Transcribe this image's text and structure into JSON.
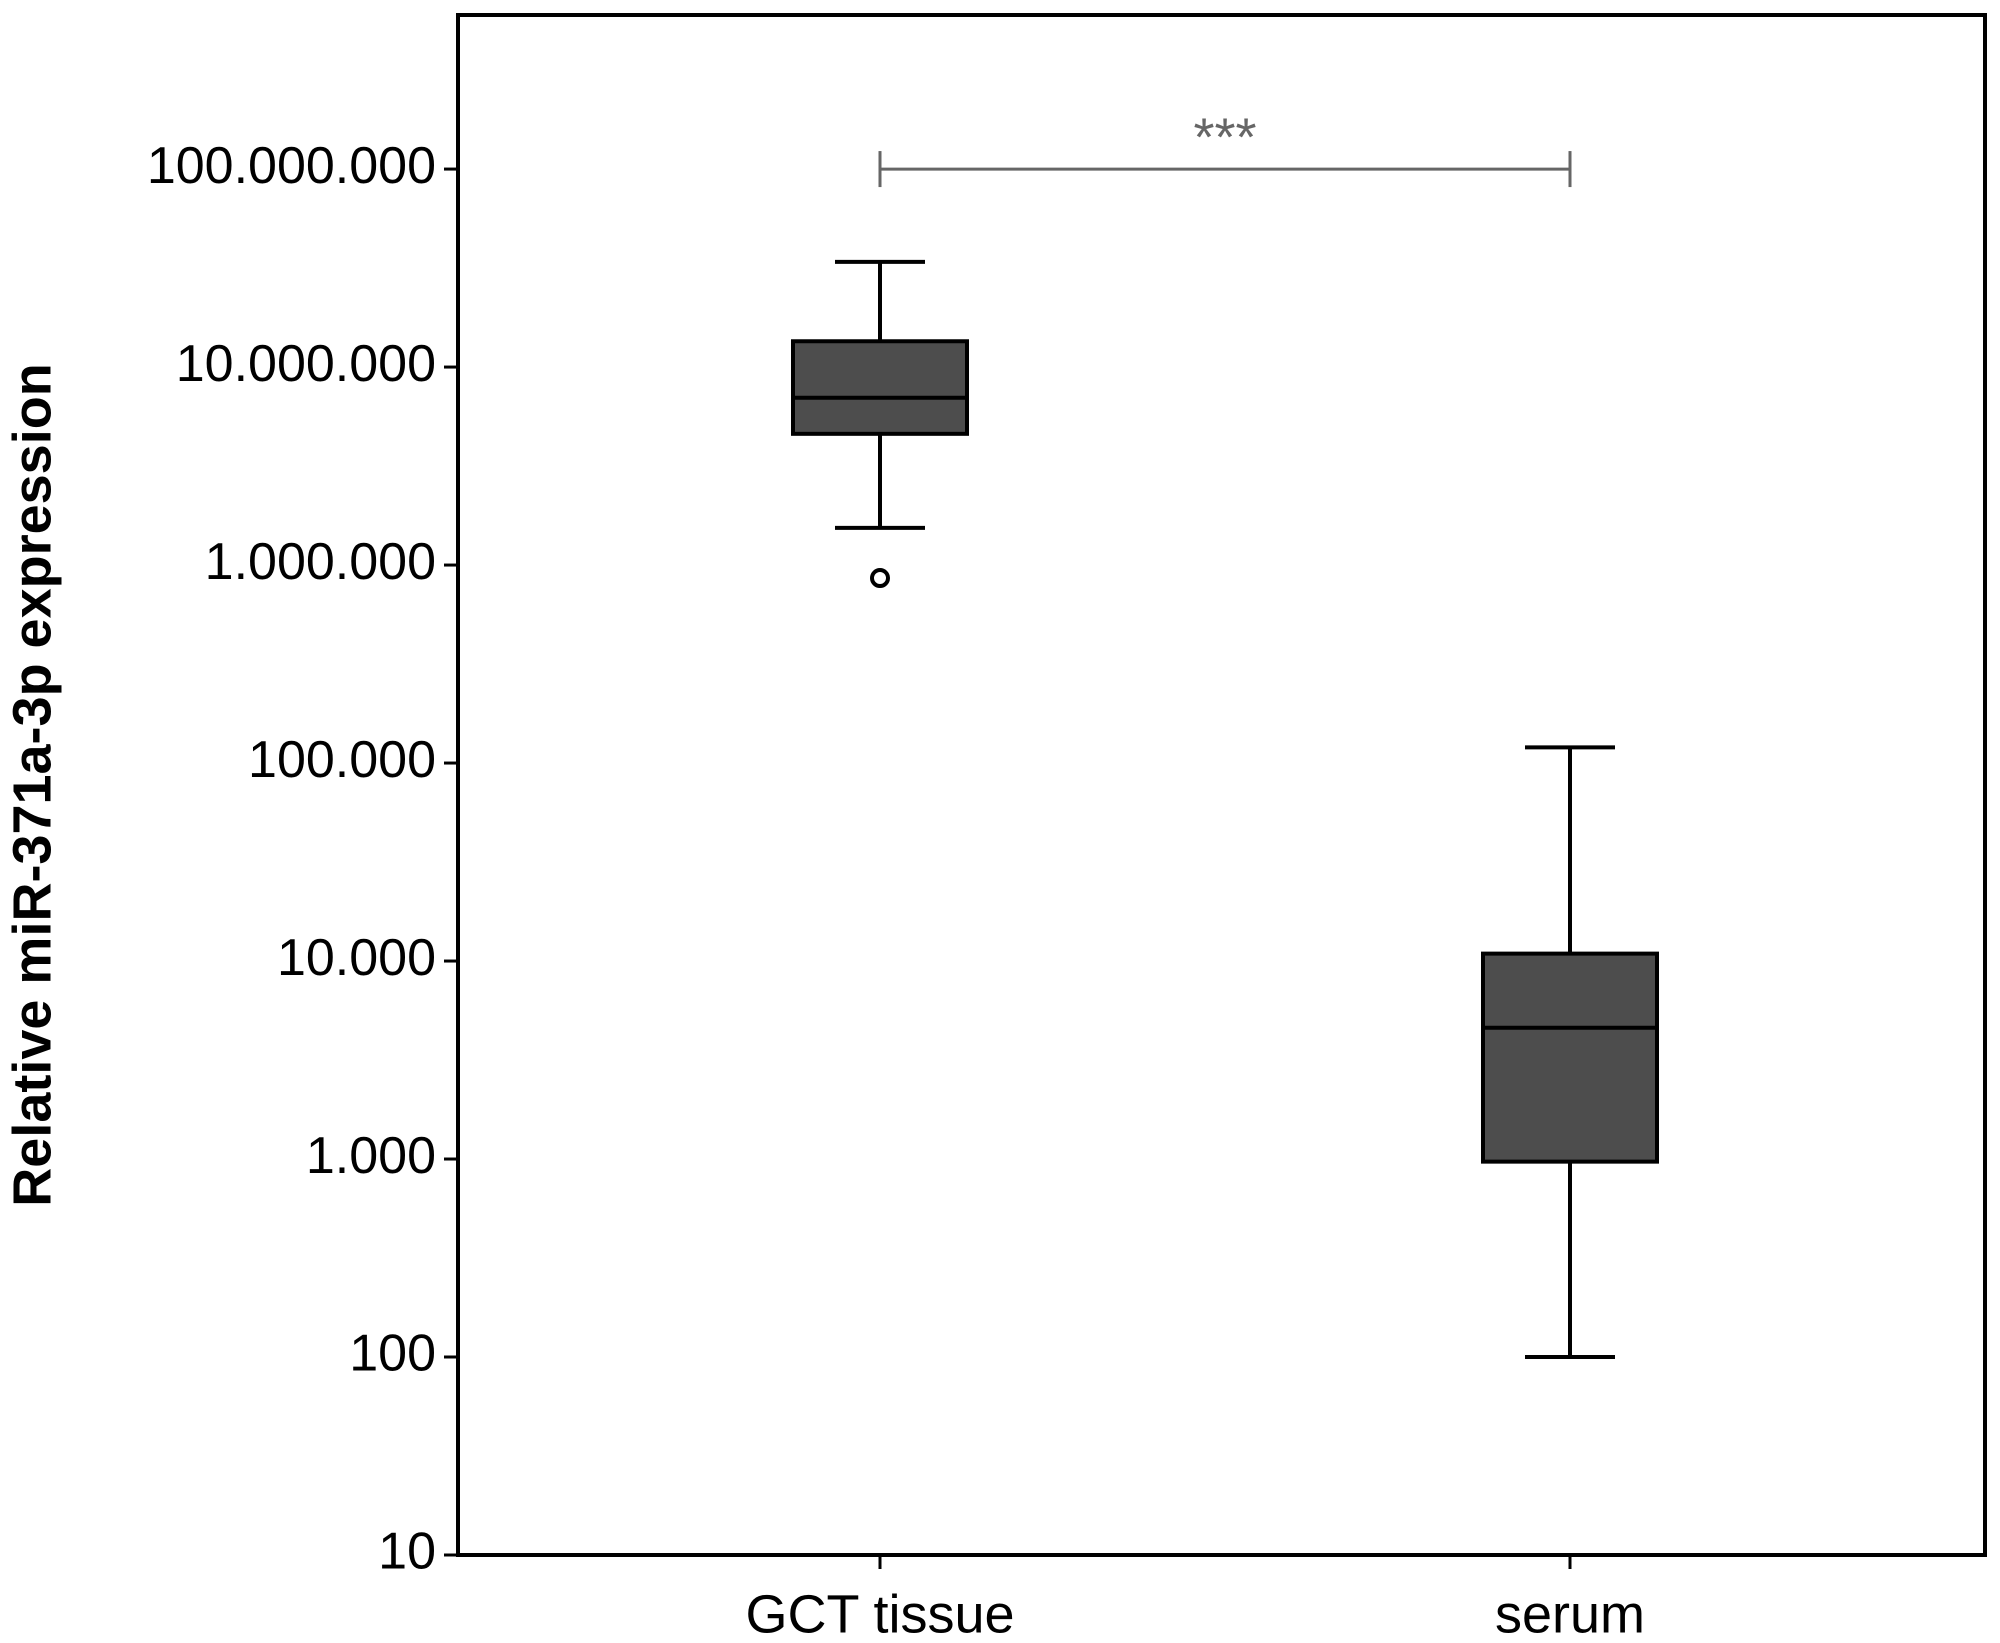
{
  "chart_data": {
    "type": "box",
    "y_label": "Relative miR-371a-3p expression",
    "categories": [
      "GCT tissue",
      "serum"
    ],
    "boxes": [
      {
        "whisker_low": 1540000,
        "q1": 4600000,
        "median": 7000000,
        "q3": 13500000,
        "whisker_high": 34000000,
        "outliers": [
          860000
        ]
      },
      {
        "whisker_low": 100,
        "q1": 970,
        "median": 4600,
        "q3": 10900,
        "whisker_high": 120000,
        "outliers": []
      }
    ],
    "color": "#4d4d4d",
    "log_scale": true,
    "ylim": [
      10,
      600000000
    ],
    "yticks": [
      10,
      100,
      {
        "value": 1000,
        "label": "1.000"
      },
      {
        "value": 10000,
        "label": "10.000"
      },
      {
        "value": 100000,
        "label": "100.000"
      },
      {
        "value": 1000000,
        "label": "1.000.000"
      },
      {
        "value": 10000000,
        "label": "10.000.000"
      },
      {
        "value": 100000000,
        "label": "100.000.000"
      }
    ],
    "annotation": {
      "text": "***",
      "y": 100000000
    }
  }
}
